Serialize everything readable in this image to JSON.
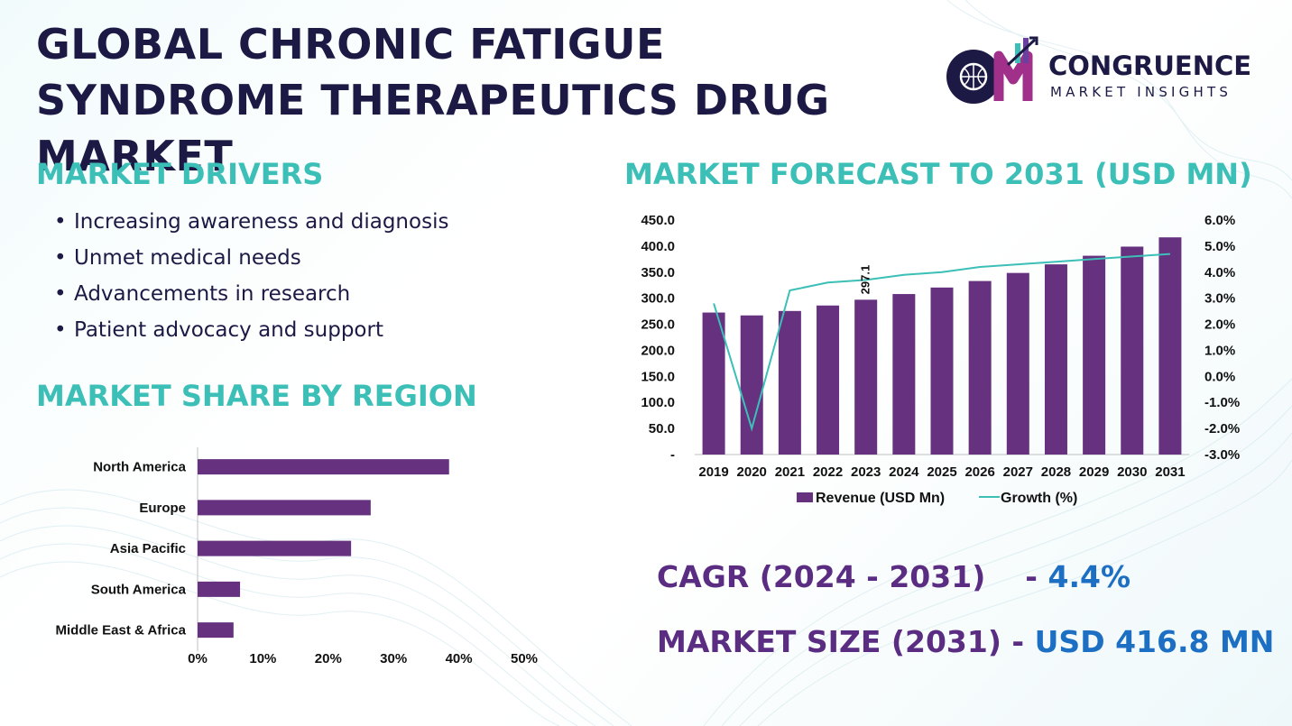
{
  "title": "GLOBAL CHRONIC FATIGUE SYNDROME THERAPEUTICS DRUG MARKET",
  "logo": {
    "line1": "CONGRUENCE",
    "line2": "MARKET INSIGHTS"
  },
  "drivers": {
    "heading": "MARKET DRIVERS",
    "items": [
      "Increasing awareness and diagnosis",
      "Unmet medical needs",
      "Advancements in research",
      "Patient advocacy and support"
    ]
  },
  "region": {
    "heading": "MARKET SHARE BY REGION"
  },
  "forecast": {
    "heading": "MARKET FORECAST TO 2031 (USD MN)"
  },
  "stats": {
    "cagr_label": "CAGR (2024 - 2031)",
    "cagr_sep": "-",
    "cagr_value": "4.4%",
    "size_label": "MARKET SIZE (2031)",
    "size_sep": "-",
    "size_value": "USD 416.8 MN"
  },
  "colors": {
    "bar": "#66317f",
    "line": "#3bbfb7",
    "heading": "#3bbfb7",
    "accent": "#1c6fc2"
  },
  "chart_data": [
    {
      "type": "bar",
      "orientation": "horizontal",
      "title": "",
      "categories": [
        "North America",
        "Europe",
        "Asia Pacific",
        "South America",
        "Middle East & Africa"
      ],
      "values": [
        38.5,
        26.5,
        23.5,
        6.5,
        5.5
      ],
      "xlim": [
        0,
        50
      ],
      "xticks": [
        "0%",
        "10%",
        "20%",
        "30%",
        "40%",
        "50%"
      ],
      "grid": false
    },
    {
      "type": "bar",
      "combo": "bar+line",
      "title": "",
      "categories": [
        "2019",
        "2020",
        "2021",
        "2022",
        "2023",
        "2024",
        "2025",
        "2026",
        "2027",
        "2028",
        "2029",
        "2030",
        "2031"
      ],
      "series": [
        {
          "name": "Revenue (USD Mn)",
          "axis": "left",
          "type": "bar",
          "values": [
            272.5,
            267.0,
            275.5,
            286.0,
            297.1,
            308.0,
            320.5,
            333.0,
            348.5,
            365.0,
            381.5,
            399.0,
            416.8
          ]
        },
        {
          "name": "Growth (%)",
          "axis": "right",
          "type": "line",
          "values": [
            2.8,
            -2.0,
            3.3,
            3.6,
            3.7,
            3.9,
            4.0,
            4.2,
            4.3,
            4.4,
            4.5,
            4.6,
            4.7
          ]
        }
      ],
      "data_labels": [
        {
          "index": 4,
          "text": "297.1"
        }
      ],
      "ylim_left": [
        0,
        450
      ],
      "yticks_left": [
        "-",
        "50.0",
        "100.0",
        "150.0",
        "200.0",
        "250.0",
        "300.0",
        "350.0",
        "400.0",
        "450.0"
      ],
      "ylim_right": [
        -3,
        6
      ],
      "yticks_right": [
        "-3.0%",
        "-2.0%",
        "-1.0%",
        "0.0%",
        "1.0%",
        "2.0%",
        "3.0%",
        "4.0%",
        "5.0%",
        "6.0%"
      ],
      "legend": "bottom",
      "grid": false
    }
  ]
}
